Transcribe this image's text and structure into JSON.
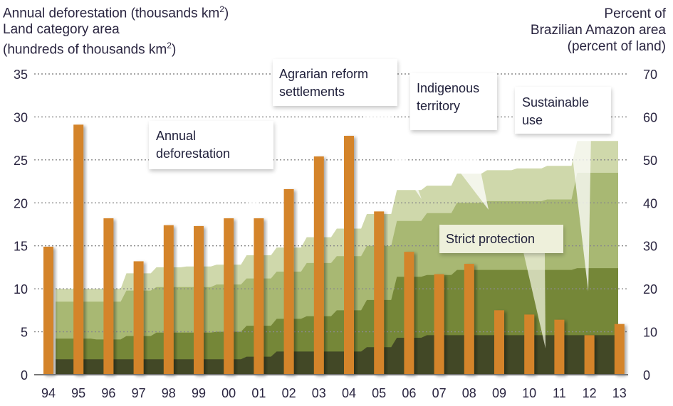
{
  "chart_data": {
    "type": "bar",
    "title_left": {
      "line1_prefix": "Annual deforestation  (thousands km",
      "line1_sup": "2",
      "line1_suffix": ")",
      "line2": "Land category area",
      "line3_prefix": "(hundreds of thousands km",
      "line3_sup": "2",
      "line3_suffix": ")"
    },
    "title_right": {
      "line1": "Percent of",
      "line2": "Brazilian Amazon area",
      "line3": "(percent of land)"
    },
    "categories": [
      "94",
      "95",
      "96",
      "97",
      "98",
      "99",
      "00",
      "01",
      "02",
      "03",
      "04",
      "05",
      "06",
      "07",
      "08",
      "09",
      "10",
      "11",
      "12",
      "13"
    ],
    "left_axis": {
      "min": 0,
      "max": 35,
      "ticks": [
        "0",
        "5",
        "10",
        "15",
        "20",
        "25",
        "30",
        "35"
      ]
    },
    "right_axis": {
      "min": 0,
      "max": 70,
      "ticks": [
        "0",
        "10",
        "20",
        "30",
        "40",
        "50",
        "60",
        "70"
      ]
    },
    "grid": true,
    "bar_series": {
      "name": "Annual deforestation",
      "axis": "left",
      "color": "#d4842a",
      "values": [
        14.9,
        29.1,
        18.2,
        13.2,
        17.4,
        17.3,
        18.2,
        18.2,
        21.6,
        25.4,
        27.8,
        19.0,
        14.3,
        11.7,
        12.9,
        7.5,
        7.0,
        6.4,
        4.6,
        5.9
      ]
    },
    "area_series": [
      {
        "name": "Strict protection",
        "axis": "right",
        "color": "#424826",
        "cumulative_top": [
          3.6,
          3.6,
          3.6,
          3.6,
          3.6,
          3.6,
          3.6,
          4.2,
          5.4,
          5.4,
          5.4,
          6.4,
          8.6,
          9.2,
          9.2,
          9.2,
          9.2,
          9.2,
          9.2,
          9.2
        ]
      },
      {
        "name": "Sustainable use",
        "axis": "right",
        "color": "#758738",
        "cumulative_top": [
          8.4,
          8.4,
          8.2,
          9.0,
          9.8,
          9.8,
          10.0,
          11.4,
          13.0,
          13.6,
          15.0,
          17.4,
          22.8,
          23.2,
          24.4,
          24.4,
          24.4,
          24.4,
          24.8,
          24.8
        ]
      },
      {
        "name": "Indigenous territory",
        "axis": "right",
        "color": "#a8b873",
        "cumulative_top": [
          17.0,
          17.0,
          17.0,
          19.6,
          20.4,
          20.4,
          21.0,
          22.4,
          24.0,
          26.0,
          27.6,
          30.0,
          35.8,
          37.6,
          40.0,
          40.4,
          40.4,
          40.8,
          47.0,
          47.0
        ]
      },
      {
        "name": "Agrarian reform settlements",
        "axis": "right",
        "color": "#cfd8ab",
        "cumulative_top": [
          20.0,
          20.0,
          20.0,
          23.6,
          25.0,
          25.2,
          25.6,
          27.8,
          29.6,
          32.0,
          34.0,
          37.4,
          43.0,
          44.0,
          46.8,
          47.6,
          48.0,
          48.6,
          54.4,
          54.4
        ]
      }
    ],
    "callouts": [
      {
        "line1": "Annual",
        "line2": "deforestation"
      },
      {
        "line1": "Agrarian reform",
        "line2": "settlements"
      },
      {
        "line1": "Indigenous",
        "line2": "territory"
      },
      {
        "line1": "Sustainable",
        "line2": "use"
      },
      {
        "line1": "Strict protection",
        "line2": ""
      }
    ]
  }
}
